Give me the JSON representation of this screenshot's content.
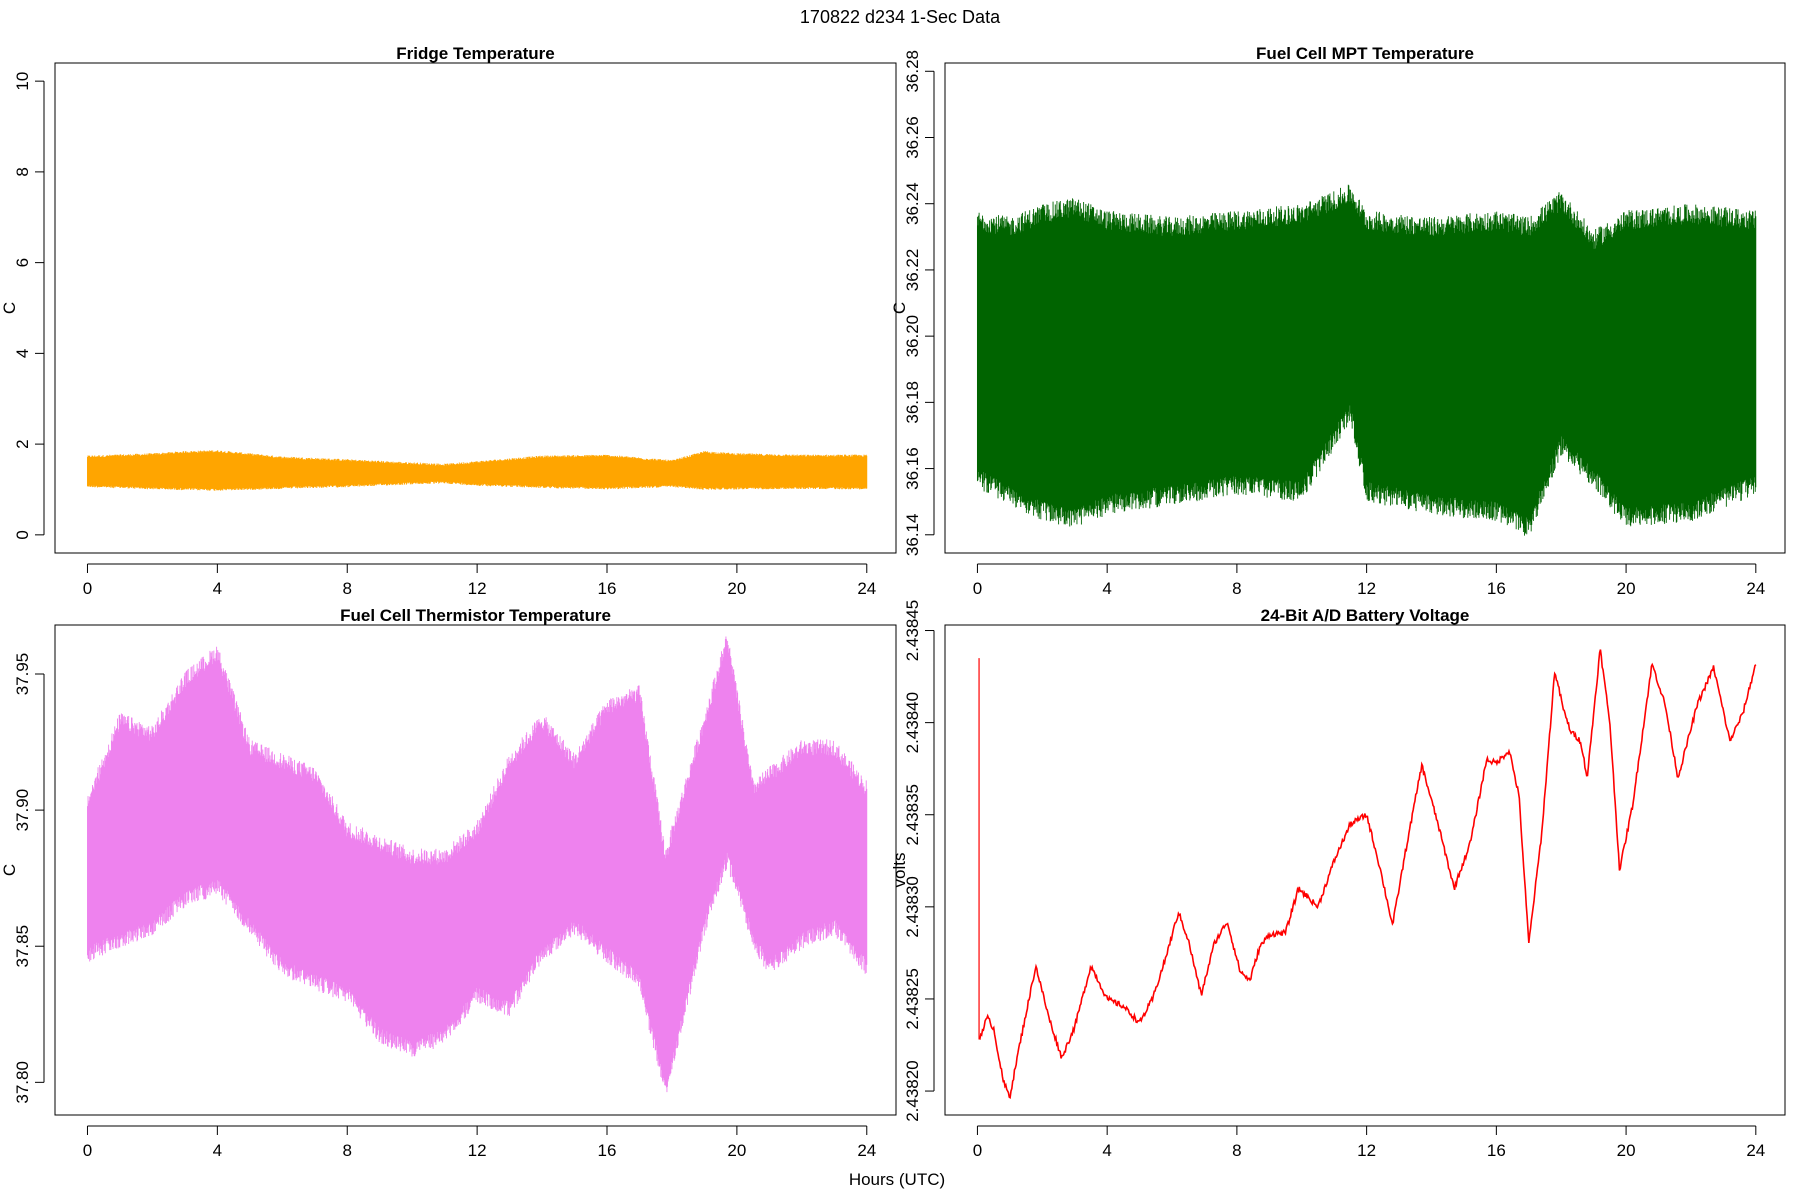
{
  "figure": {
    "title": "170822   d234   1-Sec Data",
    "xlabel": "Hours (UTC)"
  },
  "chart_data": [
    {
      "type": "line",
      "title": "Fridge Temperature",
      "ylabel": "C",
      "color": "#FFA500",
      "xlim": [
        -1,
        24.9
      ],
      "ylim": [
        -0.4,
        10.4
      ],
      "xticks": [
        0,
        4,
        8,
        12,
        16,
        20,
        24
      ],
      "yticks": [
        0,
        2,
        4,
        6,
        8,
        10
      ],
      "ytick_labels": [
        "0",
        "2",
        "4",
        "6",
        "8",
        "10"
      ],
      "band": true,
      "lower": {
        "x": [
          0,
          2,
          4,
          6,
          8,
          10,
          11,
          12,
          14,
          16,
          18,
          19,
          20,
          22,
          24
        ],
        "y": [
          1.1,
          1.05,
          1.02,
          1.06,
          1.1,
          1.16,
          1.18,
          1.13,
          1.08,
          1.05,
          1.1,
          1.04,
          1.05,
          1.06,
          1.05
        ]
      },
      "upper": {
        "x": [
          0,
          2,
          3,
          4,
          6,
          8,
          10,
          11,
          12,
          14,
          16,
          18,
          19,
          20,
          22,
          24
        ],
        "y": [
          1.7,
          1.75,
          1.8,
          1.82,
          1.68,
          1.62,
          1.55,
          1.52,
          1.58,
          1.7,
          1.72,
          1.6,
          1.8,
          1.75,
          1.72,
          1.72
        ]
      },
      "noise": 0.05
    },
    {
      "type": "line",
      "title": "Fuel Cell MPT Temperature",
      "ylabel": "C",
      "color": "#006400",
      "xlim": [
        -1,
        24.9
      ],
      "ylim": [
        36.1345,
        36.2825
      ],
      "xticks": [
        0,
        4,
        8,
        12,
        16,
        20,
        24
      ],
      "yticks": [
        36.14,
        36.16,
        36.18,
        36.2,
        36.22,
        36.24,
        36.26,
        36.28
      ],
      "ytick_labels": [
        "36.14",
        "36.16",
        "36.18",
        "36.20",
        "36.22",
        "36.24",
        "36.26",
        "36.28"
      ],
      "band": true,
      "lower": {
        "x": [
          0,
          1,
          2,
          3,
          4,
          6,
          8,
          10,
          11.5,
          12,
          14,
          16,
          17,
          18,
          19,
          20,
          22,
          24
        ],
        "y": [
          36.16,
          36.155,
          36.15,
          36.148,
          36.152,
          36.155,
          36.158,
          36.156,
          36.18,
          36.156,
          36.152,
          36.15,
          36.145,
          36.17,
          36.16,
          36.148,
          36.15,
          36.158
        ]
      },
      "upper": {
        "x": [
          0,
          1,
          2,
          3,
          4,
          6,
          8,
          10,
          11.5,
          12,
          14,
          16,
          17,
          18,
          19,
          20,
          22,
          24
        ],
        "y": [
          36.232,
          36.23,
          36.234,
          36.236,
          36.232,
          36.23,
          36.232,
          36.234,
          36.24,
          36.232,
          36.23,
          36.232,
          36.23,
          36.238,
          36.226,
          36.232,
          36.234,
          36.232
        ]
      },
      "noise": 0.006
    },
    {
      "type": "line",
      "title": "Fuel Cell Thermistor Temperature",
      "ylabel": "C",
      "color": "#EE82EE",
      "xlim": [
        -1,
        24.9
      ],
      "ylim": [
        37.788,
        37.968
      ],
      "xticks": [
        0,
        4,
        8,
        12,
        16,
        20,
        24
      ],
      "yticks": [
        37.8,
        37.85,
        37.9,
        37.95
      ],
      "ytick_labels": [
        "37.80",
        "37.85",
        "37.90",
        "37.95"
      ],
      "band": true,
      "lower": {
        "x": [
          0,
          1,
          2,
          3,
          4,
          5,
          6,
          7,
          8,
          9,
          10,
          11,
          12,
          13,
          14,
          15,
          16,
          17,
          17.8,
          19,
          19.7,
          20.5,
          21,
          22,
          23,
          24
        ],
        "y": [
          37.85,
          37.855,
          37.86,
          37.87,
          37.875,
          37.86,
          37.845,
          37.84,
          37.835,
          37.82,
          37.815,
          37.82,
          37.835,
          37.83,
          37.85,
          37.86,
          37.85,
          37.84,
          37.8,
          37.86,
          37.885,
          37.855,
          37.845,
          37.855,
          37.86,
          37.845
        ]
      },
      "upper": {
        "x": [
          0,
          1,
          2,
          3,
          4,
          5,
          6,
          7,
          8,
          9,
          10,
          11,
          12,
          13,
          14,
          15,
          16,
          17,
          17.8,
          19,
          19.7,
          20.5,
          21,
          22,
          23,
          24
        ],
        "y": [
          37.9,
          37.93,
          37.925,
          37.945,
          37.955,
          37.92,
          37.915,
          37.91,
          37.89,
          37.885,
          37.88,
          37.88,
          37.89,
          37.915,
          37.93,
          37.915,
          37.935,
          37.94,
          37.88,
          37.93,
          37.96,
          37.905,
          37.91,
          37.92,
          37.92,
          37.905
        ]
      },
      "noise": 0.006
    },
    {
      "type": "line",
      "title": "24-Bit A/D Battery Voltage",
      "ylabel": "volts",
      "color": "#FF0000",
      "xlim": [
        -1,
        24.9
      ],
      "ylim": [
        2.438187,
        2.438453
      ],
      "xticks": [
        0,
        4,
        8,
        12,
        16,
        20,
        24
      ],
      "yticks": [
        2.4382,
        2.43825,
        2.4383,
        2.43835,
        2.4384,
        2.43845
      ],
      "ytick_labels": [
        "2.43820",
        "2.43825",
        "2.43830",
        "2.43835",
        "2.43840",
        "2.43845"
      ],
      "band": false,
      "spike": {
        "x": 0.05,
        "y_top": 2.438435
      },
      "line": {
        "x": [
          0.05,
          0.3,
          0.5,
          0.8,
          1.0,
          1.3,
          1.8,
          2.2,
          2.6,
          3.0,
          3.5,
          4.0,
          4.5,
          5.0,
          5.4,
          5.8,
          6.2,
          6.5,
          6.9,
          7.3,
          7.7,
          8.1,
          8.4,
          8.7,
          9.0,
          9.5,
          9.9,
          10.5,
          11.0,
          11.5,
          12.0,
          12.4,
          12.8,
          13.2,
          13.7,
          14.2,
          14.7,
          15.2,
          15.7,
          16.0,
          16.4,
          16.7,
          17.0,
          17.4,
          17.8,
          18.1,
          18.3,
          18.6,
          18.8,
          19.2,
          19.5,
          19.8,
          20.2,
          20.8,
          21.2,
          21.6,
          22.2,
          22.7,
          23.2,
          23.6,
          24.0
        ],
        "y": [
          2.438228,
          2.43824,
          2.438234,
          2.438205,
          2.438197,
          2.438225,
          2.438268,
          2.43824,
          2.438218,
          2.438235,
          2.438268,
          2.43825,
          2.438246,
          2.438237,
          2.43825,
          2.438272,
          2.438297,
          2.438282,
          2.438252,
          2.43828,
          2.438292,
          2.438265,
          2.43826,
          2.438278,
          2.438285,
          2.438286,
          2.43831,
          2.4383,
          2.438325,
          2.438345,
          2.43835,
          2.438322,
          2.43829,
          2.43833,
          2.438377,
          2.438345,
          2.43831,
          2.438335,
          2.43838,
          2.438378,
          2.438385,
          2.43836,
          2.43828,
          2.43834,
          2.438428,
          2.438405,
          2.438395,
          2.43839,
          2.43837,
          2.43844,
          2.4384,
          2.43832,
          2.438355,
          2.438432,
          2.43841,
          2.43837,
          2.43841,
          2.43843,
          2.43839,
          2.438405,
          2.438432
        ]
      },
      "noise": 1.5e-06
    }
  ]
}
